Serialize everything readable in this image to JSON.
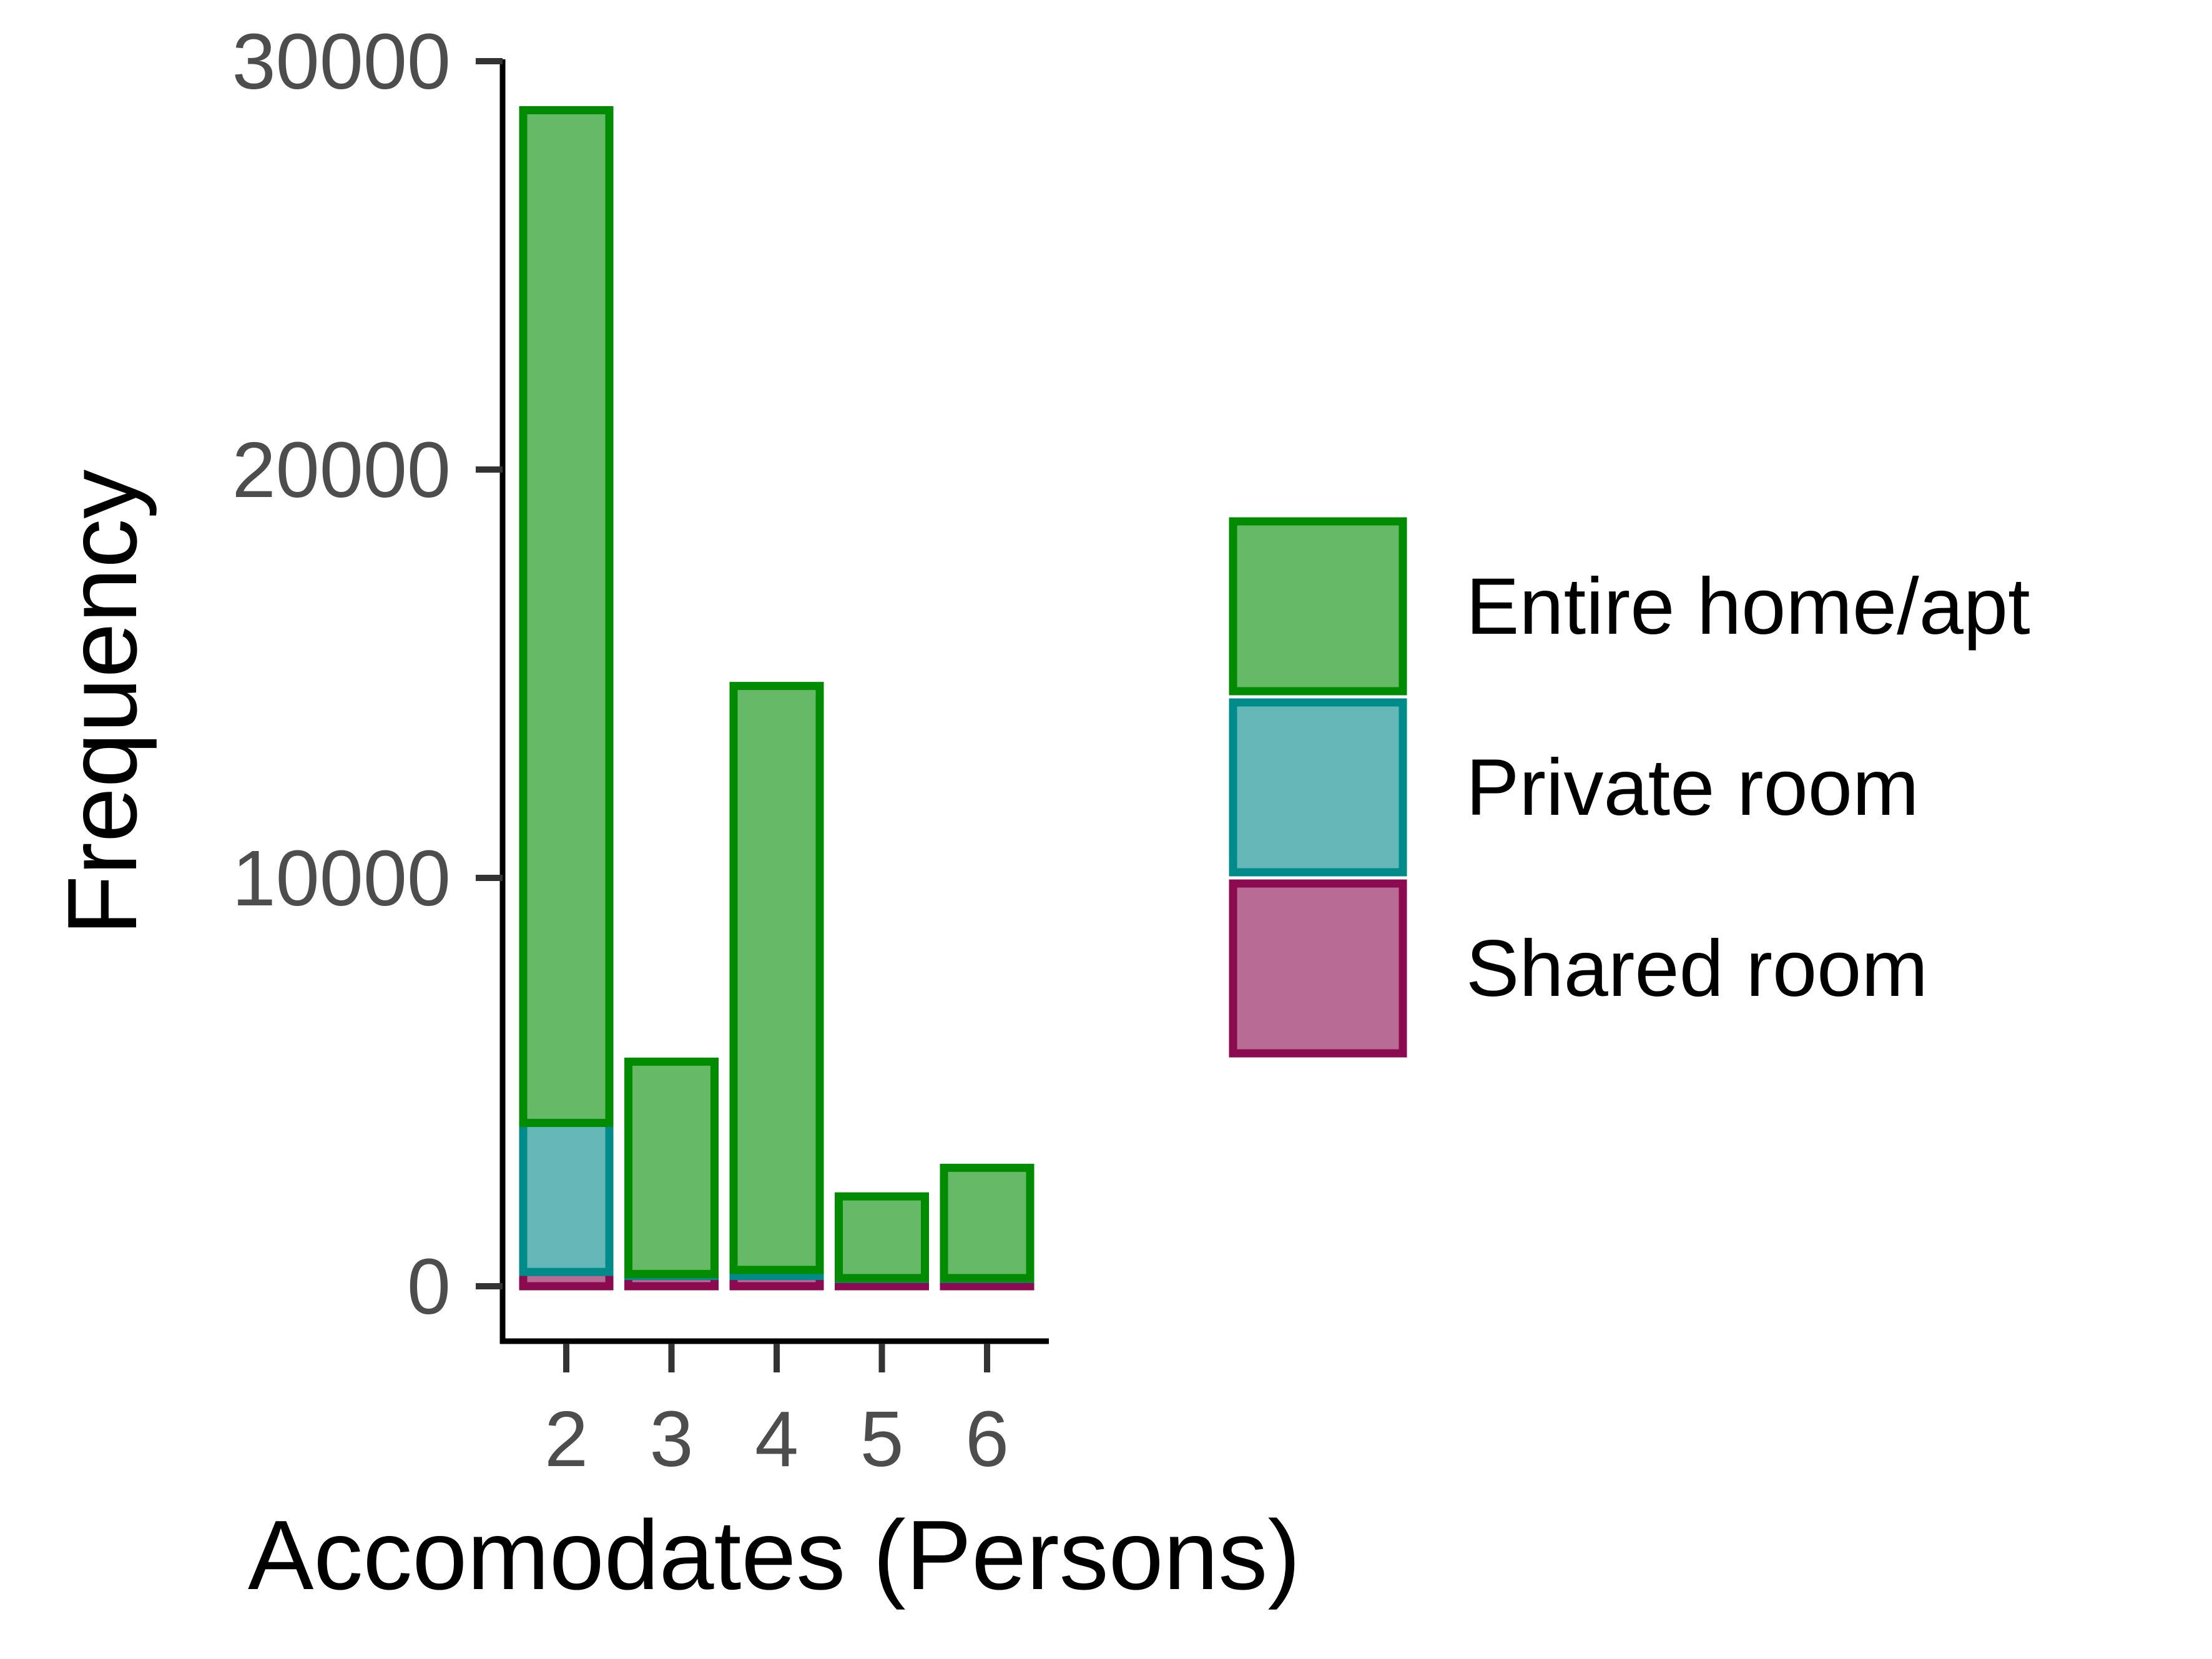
{
  "chart_data": {
    "type": "bar",
    "stacked": true,
    "title": "",
    "xlabel": "Accomodates (Persons)",
    "ylabel": "Frequency",
    "categories": [
      "2",
      "3",
      "4",
      "5",
      "6"
    ],
    "ylim": [
      -1400,
      30000
    ],
    "yticks": [
      "0",
      "10000",
      "20000",
      "30000"
    ],
    "grid": false,
    "legend_position": "right",
    "series": [
      {
        "name": "Shared room",
        "fill": "#b86b94",
        "stroke": "#8b0a50",
        "values": [
          350,
          250,
          250,
          180,
          180
        ]
      },
      {
        "name": "Private room",
        "fill": "#66b8b8",
        "stroke": "#008b8b",
        "values": [
          3650,
          50,
          150,
          20,
          20
        ]
      },
      {
        "name": "Entire home/apt",
        "fill": "#66b966",
        "stroke": "#008b00",
        "values": [
          24800,
          5200,
          14300,
          2000,
          2700
        ]
      }
    ],
    "legend_order": [
      "Entire home/apt",
      "Private room",
      "Shared room"
    ]
  }
}
